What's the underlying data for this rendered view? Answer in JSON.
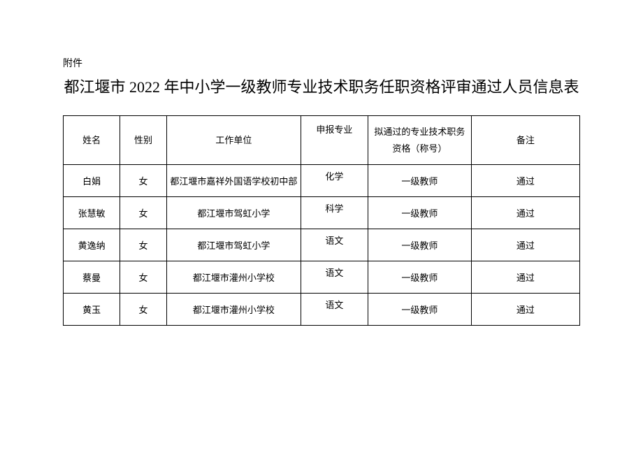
{
  "attachment_label": "附件",
  "title": "都江堰市 2022 年中小学一级教师专业技术职务任职资格评审通过人员信息表",
  "table": {
    "columns": [
      "姓名",
      "性别",
      "工作单位",
      "申报专业",
      "拟通过的专业技术职务资格（称号）",
      "备注"
    ],
    "rows": [
      [
        "白娟",
        "女",
        "都江堰市嘉祥外国语学校初中部",
        "化学",
        "一级教师",
        "通过"
      ],
      [
        "张慧敏",
        "女",
        "都江堰市驾虹小学",
        "科学",
        "一级教师",
        "通过"
      ],
      [
        "黄逸纳",
        "女",
        "都江堰市驾虹小学",
        "语文",
        "一级教师",
        "通过"
      ],
      [
        "蔡曼",
        "女",
        "都江堰市灌州小学校",
        "语文",
        "一级教师",
        "通过"
      ],
      [
        "黄玉",
        "女",
        "都江堰市灌州小学校",
        "语文",
        "一级教师",
        "通过"
      ]
    ]
  }
}
